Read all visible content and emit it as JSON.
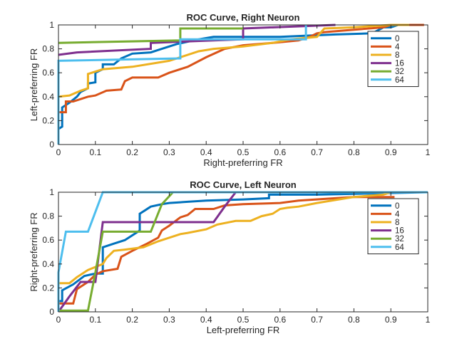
{
  "chart_data": [
    {
      "type": "line",
      "title": "ROC Curve, Right Neuron",
      "xlabel": "Right-preferring FR",
      "ylabel": "Left-preferring FR",
      "xlim": [
        0,
        1
      ],
      "ylim": [
        0,
        1
      ],
      "xticks": [
        "0",
        "0.1",
        "0.2",
        "0.3",
        "0.4",
        "0.5",
        "0.6",
        "0.7",
        "0.8",
        "0.9",
        "1"
      ],
      "yticks": [
        "0",
        "0.2",
        "0.4",
        "0.6",
        "0.8",
        "1"
      ],
      "grid": false,
      "legend_position": "top-right",
      "series": [
        {
          "name": "0",
          "color": "#0072BD",
          "points": [
            [
              0,
              0
            ],
            [
              0,
              0.13
            ],
            [
              0.01,
              0.15
            ],
            [
              0.01,
              0.31
            ],
            [
              0.03,
              0.35
            ],
            [
              0.05,
              0.4
            ],
            [
              0.06,
              0.44
            ],
            [
              0.08,
              0.47
            ],
            [
              0.08,
              0.51
            ],
            [
              0.1,
              0.52
            ],
            [
              0.1,
              0.6
            ],
            [
              0.12,
              0.63
            ],
            [
              0.12,
              0.67
            ],
            [
              0.15,
              0.67
            ],
            [
              0.17,
              0.72
            ],
            [
              0.2,
              0.76
            ],
            [
              0.25,
              0.77
            ],
            [
              0.28,
              0.8
            ],
            [
              0.32,
              0.84
            ],
            [
              0.38,
              0.88
            ],
            [
              0.42,
              0.9
            ],
            [
              0.6,
              0.9
            ],
            [
              0.75,
              0.92
            ],
            [
              0.85,
              0.93
            ],
            [
              0.88,
              0.98
            ],
            [
              0.9,
              0.98
            ],
            [
              0.92,
              1
            ]
          ]
        },
        {
          "name": "4",
          "color": "#D95319",
          "points": [
            [
              0,
              0.27
            ],
            [
              0.02,
              0.27
            ],
            [
              0.02,
              0.36
            ],
            [
              0.04,
              0.36
            ],
            [
              0.08,
              0.4
            ],
            [
              0.1,
              0.41
            ],
            [
              0.13,
              0.45
            ],
            [
              0.17,
              0.46
            ],
            [
              0.18,
              0.53
            ],
            [
              0.2,
              0.56
            ],
            [
              0.27,
              0.56
            ],
            [
              0.3,
              0.6
            ],
            [
              0.35,
              0.65
            ],
            [
              0.4,
              0.73
            ],
            [
              0.45,
              0.8
            ],
            [
              0.5,
              0.83
            ],
            [
              0.58,
              0.85
            ],
            [
              0.65,
              0.87
            ],
            [
              0.68,
              0.9
            ],
            [
              0.7,
              0.93
            ],
            [
              0.72,
              0.94
            ],
            [
              0.8,
              0.96
            ],
            [
              0.88,
              0.98
            ],
            [
              0.9,
              1
            ],
            [
              0.99,
              1
            ]
          ]
        },
        {
          "name": "8",
          "color": "#EDB120",
          "points": [
            [
              0,
              0.4
            ],
            [
              0.03,
              0.41
            ],
            [
              0.06,
              0.45
            ],
            [
              0.08,
              0.47
            ],
            [
              0.08,
              0.59
            ],
            [
              0.12,
              0.63
            ],
            [
              0.2,
              0.65
            ],
            [
              0.3,
              0.7
            ],
            [
              0.33,
              0.73
            ],
            [
              0.38,
              0.78
            ],
            [
              0.42,
              0.8
            ],
            [
              0.5,
              0.82
            ],
            [
              0.58,
              0.85
            ],
            [
              0.63,
              0.88
            ],
            [
              0.7,
              0.9
            ],
            [
              0.72,
              0.97
            ],
            [
              0.8,
              0.98
            ],
            [
              0.9,
              1
            ],
            [
              0.95,
              1
            ]
          ]
        },
        {
          "name": "16",
          "color": "#7E2F8E",
          "points": [
            [
              0,
              0.75
            ],
            [
              0.05,
              0.77
            ],
            [
              0.25,
              0.8
            ],
            [
              0.25,
              0.85
            ],
            [
              0.5,
              0.88
            ],
            [
              0.5,
              0.97
            ],
            [
              0.75,
              1
            ]
          ]
        },
        {
          "name": "32",
          "color": "#77AC30",
          "points": [
            [
              0,
              0.85
            ],
            [
              0.33,
              0.87
            ],
            [
              0.33,
              0.97
            ],
            [
              0.5,
              0.97
            ]
          ]
        },
        {
          "name": "64",
          "color": "#4DBEEE",
          "points": [
            [
              0,
              0
            ],
            [
              0,
              0.7
            ],
            [
              0.33,
              0.72
            ],
            [
              0.33,
              0.88
            ],
            [
              0.67,
              0.88
            ],
            [
              0.67,
              1
            ]
          ]
        }
      ]
    },
    {
      "type": "line",
      "title": "ROC Curve, Left Neuron",
      "xlabel": "Left-preferring FR",
      "ylabel": "Right-preferring FR",
      "xlim": [
        0,
        1
      ],
      "ylim": [
        0,
        1
      ],
      "xticks": [
        "0",
        "0.1",
        "0.2",
        "0.3",
        "0.4",
        "0.5",
        "0.6",
        "0.7",
        "0.8",
        "0.9",
        "1"
      ],
      "yticks": [
        "0",
        "0.2",
        "0.4",
        "0.6",
        "0.8",
        "1"
      ],
      "grid": false,
      "legend_position": "top-right",
      "series": [
        {
          "name": "0",
          "color": "#0072BD",
          "points": [
            [
              0,
              0.09
            ],
            [
              0.01,
              0.09
            ],
            [
              0.01,
              0.18
            ],
            [
              0.04,
              0.23
            ],
            [
              0.07,
              0.3
            ],
            [
              0.1,
              0.32
            ],
            [
              0.12,
              0.32
            ],
            [
              0.12,
              0.54
            ],
            [
              0.15,
              0.57
            ],
            [
              0.18,
              0.6
            ],
            [
              0.22,
              0.68
            ],
            [
              0.22,
              0.82
            ],
            [
              0.25,
              0.88
            ],
            [
              0.28,
              0.9
            ],
            [
              0.3,
              0.91
            ],
            [
              0.35,
              0.92
            ],
            [
              0.4,
              0.93
            ],
            [
              0.5,
              0.94
            ],
            [
              0.57,
              0.95
            ],
            [
              0.57,
              0.98
            ],
            [
              0.7,
              0.98
            ],
            [
              1,
              1
            ]
          ]
        },
        {
          "name": "4",
          "color": "#D95319",
          "points": [
            [
              0,
              0.07
            ],
            [
              0.04,
              0.07
            ],
            [
              0.05,
              0.19
            ],
            [
              0.08,
              0.25
            ],
            [
              0.1,
              0.31
            ],
            [
              0.12,
              0.34
            ],
            [
              0.16,
              0.36
            ],
            [
              0.17,
              0.46
            ],
            [
              0.2,
              0.51
            ],
            [
              0.24,
              0.57
            ],
            [
              0.27,
              0.62
            ],
            [
              0.28,
              0.68
            ],
            [
              0.3,
              0.72
            ],
            [
              0.33,
              0.79
            ],
            [
              0.35,
              0.81
            ],
            [
              0.37,
              0.86
            ],
            [
              0.42,
              0.86
            ],
            [
              0.45,
              0.89
            ],
            [
              0.5,
              0.9
            ],
            [
              0.6,
              0.91
            ],
            [
              0.65,
              0.93
            ],
            [
              0.75,
              0.95
            ],
            [
              0.8,
              0.96
            ],
            [
              0.91,
              0.96
            ]
          ]
        },
        {
          "name": "8",
          "color": "#EDB120",
          "points": [
            [
              0,
              0.24
            ],
            [
              0.03,
              0.24
            ],
            [
              0.05,
              0.29
            ],
            [
              0.08,
              0.35
            ],
            [
              0.12,
              0.4
            ],
            [
              0.13,
              0.45
            ],
            [
              0.15,
              0.51
            ],
            [
              0.18,
              0.52
            ],
            [
              0.23,
              0.54
            ],
            [
              0.27,
              0.59
            ],
            [
              0.33,
              0.65
            ],
            [
              0.35,
              0.66
            ],
            [
              0.4,
              0.69
            ],
            [
              0.43,
              0.73
            ],
            [
              0.48,
              0.76
            ],
            [
              0.52,
              0.76
            ],
            [
              0.55,
              0.8
            ],
            [
              0.58,
              0.82
            ],
            [
              0.6,
              0.86
            ],
            [
              0.62,
              0.87
            ],
            [
              0.65,
              0.88
            ],
            [
              0.7,
              0.91
            ],
            [
              0.8,
              0.96
            ],
            [
              0.88,
              0.98
            ],
            [
              0.9,
              1
            ],
            [
              1,
              1
            ]
          ]
        },
        {
          "name": "16",
          "color": "#7E2F8E",
          "points": [
            [
              0,
              0
            ],
            [
              0.03,
              0.13
            ],
            [
              0.06,
              0.25
            ],
            [
              0.1,
              0.25
            ],
            [
              0.12,
              0.75
            ],
            [
              0.42,
              0.75
            ],
            [
              0.45,
              0.88
            ],
            [
              0.48,
              1
            ]
          ]
        },
        {
          "name": "32",
          "color": "#77AC30",
          "points": [
            [
              0,
              0.01
            ],
            [
              0.08,
              0.01
            ],
            [
              0.1,
              0.33
            ],
            [
              0.12,
              0.67
            ],
            [
              0.25,
              0.67
            ],
            [
              0.28,
              0.9
            ],
            [
              0.31,
              1
            ]
          ]
        },
        {
          "name": "64",
          "color": "#4DBEEE",
          "points": [
            [
              0,
              0
            ],
            [
              0,
              0.33
            ],
            [
              0.02,
              0.67
            ],
            [
              0.08,
              0.67
            ],
            [
              0.12,
              1
            ],
            [
              1,
              1
            ]
          ]
        }
      ]
    }
  ]
}
